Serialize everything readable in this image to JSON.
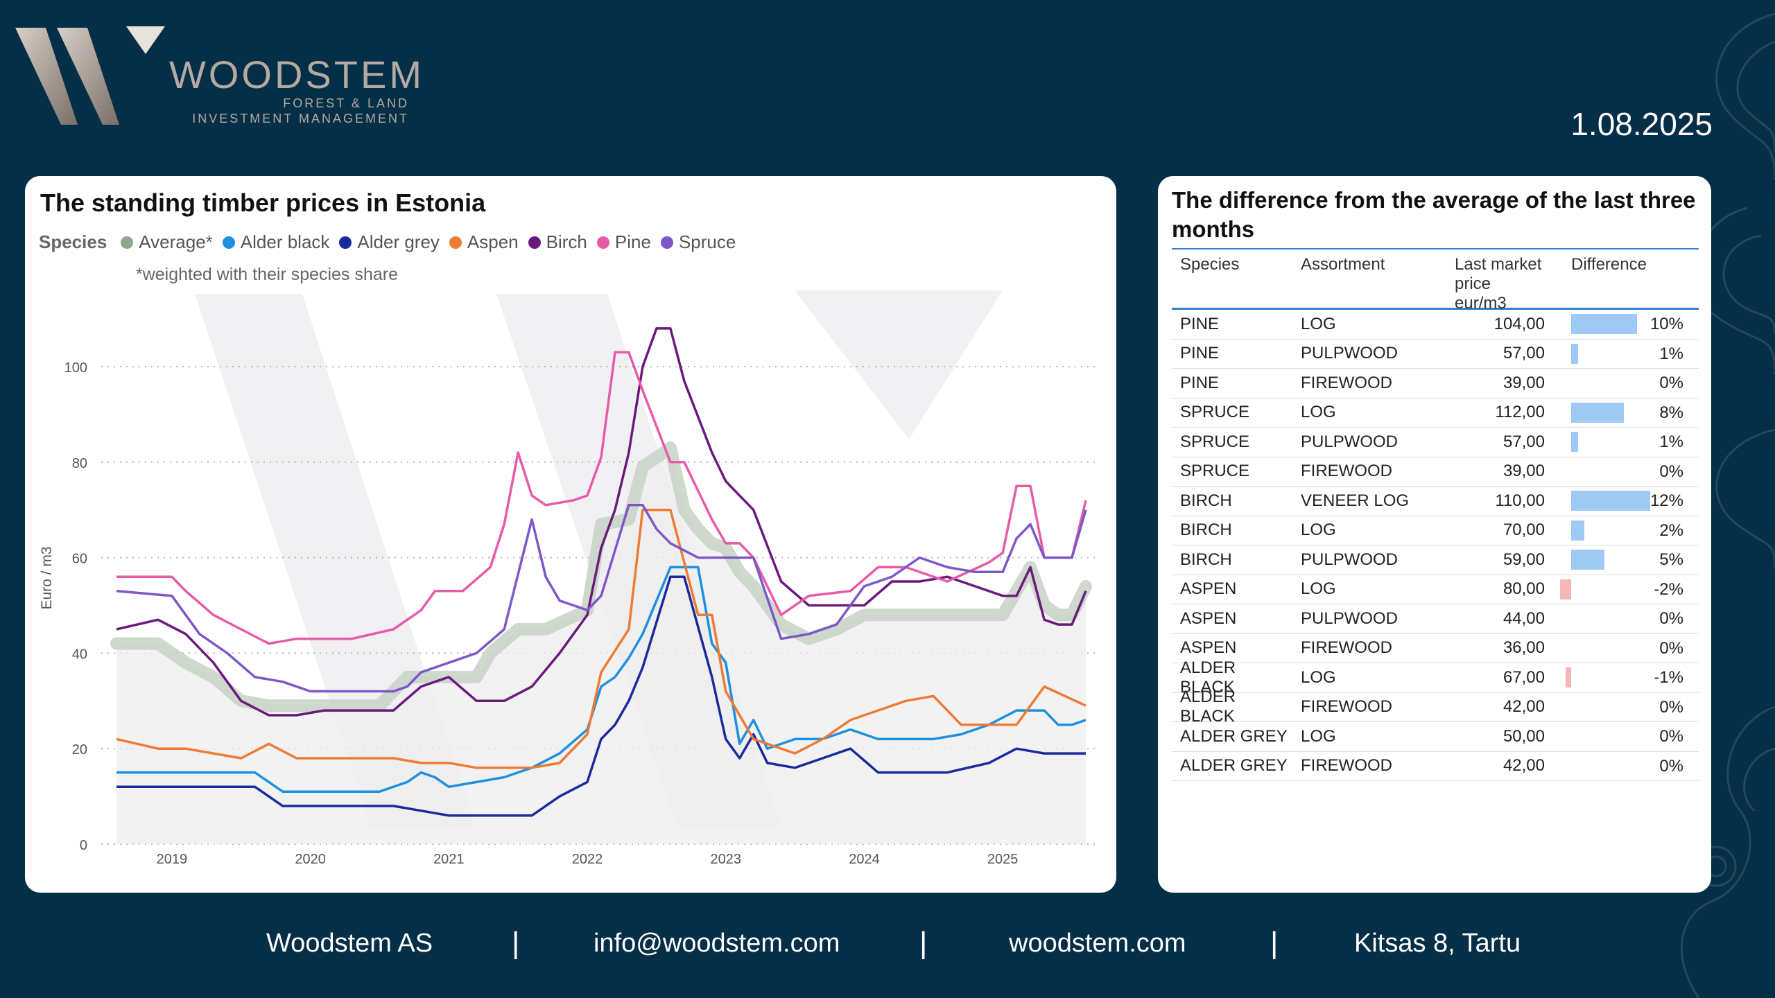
{
  "brand": {
    "name": "WOODSTEM",
    "sub1": "FOREST & LAND",
    "sub2": "INVESTMENT MANAGEMENT"
  },
  "date": "1.08.2025",
  "chart": {
    "title": "The standing timber prices in Estonia",
    "legend_title": "Species",
    "note": "*weighted with their species share",
    "ylabel": "Euro / m3"
  },
  "chart_data": {
    "type": "line",
    "title": "The standing timber prices in Estonia",
    "ylabel": "Euro / m3",
    "ylim": [
      0,
      110
    ],
    "yticks": [
      0,
      20,
      40,
      60,
      80,
      100
    ],
    "xticks": [
      "2019",
      "2020",
      "2021",
      "2022",
      "2023",
      "2024",
      "2025"
    ],
    "grid": "horizontal dotted",
    "legend_position": "top-left",
    "series": [
      {
        "name": "Average*",
        "color": "#8fa78f",
        "x": [
          2018.6,
          2018.9,
          2019.1,
          2019.3,
          2019.5,
          2019.7,
          2019.9,
          2020.1,
          2020.3,
          2020.5,
          2020.7,
          2020.8,
          2021.0,
          2021.2,
          2021.3,
          2021.5,
          2021.7,
          2022.0,
          2022.1,
          2022.3,
          2022.4,
          2022.6,
          2022.7,
          2022.8,
          2022.9,
          2023.0,
          2023.1,
          2023.2,
          2023.4,
          2023.6,
          2023.8,
          2024.0,
          2024.3,
          2024.6,
          2024.9,
          2025.0,
          2025.2,
          2025.3,
          2025.4,
          2025.5,
          2025.6
        ],
        "y": [
          42,
          42,
          38,
          35,
          30,
          29,
          29,
          29,
          29,
          29,
          35,
          35,
          35,
          35,
          40,
          45,
          45,
          49,
          67,
          68,
          79,
          83,
          70,
          66,
          63,
          62,
          57,
          54,
          46,
          43,
          45,
          48,
          48,
          48,
          48,
          48,
          58,
          50,
          48,
          48,
          54
        ]
      },
      {
        "name": "Alder black",
        "color": "#1e90e0",
        "x": [
          2018.6,
          2019.0,
          2019.4,
          2019.6,
          2019.8,
          2020.0,
          2020.3,
          2020.5,
          2020.7,
          2020.8,
          2020.9,
          2021.0,
          2021.2,
          2021.4,
          2021.6,
          2021.8,
          2022.0,
          2022.1,
          2022.2,
          2022.3,
          2022.4,
          2022.6,
          2022.8,
          2022.9,
          2023.0,
          2023.1,
          2023.2,
          2023.3,
          2023.5,
          2023.7,
          2023.9,
          2024.1,
          2024.3,
          2024.5,
          2024.7,
          2024.9,
          2025.1,
          2025.3,
          2025.4,
          2025.5,
          2025.6
        ],
        "y": [
          15,
          15,
          15,
          15,
          11,
          11,
          11,
          11,
          13,
          15,
          14,
          12,
          13,
          14,
          16,
          19,
          24,
          33,
          35,
          39,
          44,
          58,
          58,
          42,
          38,
          21,
          26,
          20,
          22,
          22,
          24,
          22,
          22,
          22,
          23,
          25,
          28,
          28,
          25,
          25,
          26
        ]
      },
      {
        "name": "Alder grey",
        "color": "#1a2a9c",
        "x": [
          2018.6,
          2019.0,
          2019.4,
          2019.6,
          2019.8,
          2020.0,
          2020.3,
          2020.6,
          2020.8,
          2021.0,
          2021.2,
          2021.4,
          2021.6,
          2021.8,
          2022.0,
          2022.1,
          2022.2,
          2022.3,
          2022.4,
          2022.6,
          2022.7,
          2022.9,
          2023.0,
          2023.1,
          2023.2,
          2023.3,
          2023.5,
          2023.7,
          2023.9,
          2024.1,
          2024.3,
          2024.6,
          2024.9,
          2025.1,
          2025.3,
          2025.6
        ],
        "y": [
          12,
          12,
          12,
          12,
          8,
          8,
          8,
          8,
          7,
          6,
          6,
          6,
          6,
          10,
          13,
          22,
          25,
          30,
          37,
          56,
          56,
          35,
          22,
          18,
          23,
          17,
          16,
          18,
          20,
          15,
          15,
          15,
          17,
          20,
          19,
          19
        ]
      },
      {
        "name": "Aspen",
        "color": "#ee7b33",
        "x": [
          2018.6,
          2018.9,
          2019.1,
          2019.3,
          2019.5,
          2019.7,
          2019.9,
          2020.1,
          2020.3,
          2020.6,
          2020.8,
          2021.0,
          2021.2,
          2021.4,
          2021.6,
          2021.8,
          2022.0,
          2022.1,
          2022.3,
          2022.4,
          2022.6,
          2022.8,
          2022.9,
          2023.0,
          2023.2,
          2023.3,
          2023.5,
          2023.7,
          2023.9,
          2024.1,
          2024.3,
          2024.5,
          2024.7,
          2024.9,
          2025.1,
          2025.3,
          2025.6
        ],
        "y": [
          22,
          20,
          20,
          19,
          18,
          21,
          18,
          18,
          18,
          18,
          17,
          17,
          16,
          16,
          16,
          17,
          23,
          36,
          45,
          70,
          70,
          48,
          48,
          32,
          22,
          21,
          19,
          22,
          26,
          28,
          30,
          31,
          25,
          25,
          25,
          33,
          29
        ]
      },
      {
        "name": "Birch",
        "color": "#6a1a7c",
        "x": [
          2018.6,
          2018.9,
          2019.1,
          2019.3,
          2019.5,
          2019.7,
          2019.9,
          2020.1,
          2020.3,
          2020.6,
          2020.8,
          2021.0,
          2021.2,
          2021.4,
          2021.6,
          2021.8,
          2022.0,
          2022.1,
          2022.2,
          2022.3,
          2022.4,
          2022.5,
          2022.6,
          2022.7,
          2022.9,
          2023.0,
          2023.2,
          2023.4,
          2023.6,
          2023.8,
          2024.0,
          2024.2,
          2024.4,
          2024.6,
          2024.8,
          2025.0,
          2025.1,
          2025.2,
          2025.3,
          2025.4,
          2025.5,
          2025.6
        ],
        "y": [
          45,
          47,
          44,
          38,
          30,
          27,
          27,
          28,
          28,
          28,
          33,
          35,
          30,
          30,
          33,
          40,
          48,
          62,
          70,
          82,
          100,
          108,
          108,
          97,
          82,
          76,
          70,
          55,
          50,
          50,
          50,
          55,
          55,
          56,
          54,
          52,
          52,
          58,
          47,
          46,
          46,
          53
        ]
      },
      {
        "name": "Pine",
        "color": "#e85aa8",
        "x": [
          2018.6,
          2019.0,
          2019.1,
          2019.3,
          2019.5,
          2019.7,
          2019.9,
          2020.1,
          2020.3,
          2020.6,
          2020.8,
          2020.9,
          2021.1,
          2021.3,
          2021.4,
          2021.5,
          2021.6,
          2021.7,
          2021.9,
          2022.0,
          2022.1,
          2022.2,
          2022.3,
          2022.4,
          2022.6,
          2022.7,
          2022.9,
          2023.0,
          2023.1,
          2023.2,
          2023.4,
          2023.6,
          2023.9,
          2024.1,
          2024.3,
          2024.6,
          2024.9,
          2025.0,
          2025.1,
          2025.2,
          2025.3,
          2025.4,
          2025.5,
          2025.6
        ],
        "y": [
          56,
          56,
          53,
          48,
          45,
          42,
          43,
          43,
          43,
          45,
          49,
          53,
          53,
          58,
          67,
          82,
          73,
          71,
          72,
          73,
          81,
          103,
          103,
          95,
          80,
          80,
          68,
          63,
          63,
          60,
          48,
          52,
          53,
          58,
          58,
          55,
          59,
          61,
          75,
          75,
          60,
          60,
          60,
          72
        ]
      },
      {
        "name": "Spruce",
        "color": "#7d57c9",
        "x": [
          2018.6,
          2019.0,
          2019.2,
          2019.4,
          2019.6,
          2019.8,
          2020.0,
          2020.3,
          2020.6,
          2020.7,
          2020.8,
          2021.0,
          2021.2,
          2021.4,
          2021.6,
          2021.7,
          2021.8,
          2022.0,
          2022.1,
          2022.3,
          2022.4,
          2022.5,
          2022.6,
          2022.8,
          2023.0,
          2023.2,
          2023.4,
          2023.6,
          2023.8,
          2024.0,
          2024.2,
          2024.4,
          2024.6,
          2024.8,
          2025.0,
          2025.1,
          2025.2,
          2025.3,
          2025.5,
          2025.6
        ],
        "y": [
          53,
          52,
          44,
          40,
          35,
          34,
          32,
          32,
          32,
          33,
          36,
          38,
          40,
          45,
          68,
          56,
          51,
          49,
          52,
          71,
          71,
          66,
          63,
          60,
          60,
          60,
          43,
          44,
          46,
          54,
          56,
          60,
          58,
          57,
          57,
          64,
          67,
          60,
          60,
          70
        ]
      }
    ]
  },
  "table": {
    "title": "The difference from the average of the last three months",
    "headers": {
      "species": "Species",
      "assortment": "Assortment",
      "price1": "Last market",
      "price2": "price eur/m3",
      "diff": "Difference"
    },
    "rows": [
      {
        "species": "PINE",
        "assortment": "LOG",
        "price": "104,00",
        "diff": "10%",
        "value": 10
      },
      {
        "species": "PINE",
        "assortment": "PULPWOOD",
        "price": "57,00",
        "diff": "1%",
        "value": 1
      },
      {
        "species": "PINE",
        "assortment": "FIREWOOD",
        "price": "39,00",
        "diff": "0%",
        "value": 0
      },
      {
        "species": "SPRUCE",
        "assortment": "LOG",
        "price": "112,00",
        "diff": "8%",
        "value": 8
      },
      {
        "species": "SPRUCE",
        "assortment": "PULPWOOD",
        "price": "57,00",
        "diff": "1%",
        "value": 1
      },
      {
        "species": "SPRUCE",
        "assortment": "FIREWOOD",
        "price": "39,00",
        "diff": "0%",
        "value": 0
      },
      {
        "species": "BIRCH",
        "assortment": "VENEER LOG",
        "price": "110,00",
        "diff": "12%",
        "value": 12
      },
      {
        "species": "BIRCH",
        "assortment": "LOG",
        "price": "70,00",
        "diff": "2%",
        "value": 2
      },
      {
        "species": "BIRCH",
        "assortment": "PULPWOOD",
        "price": "59,00",
        "diff": "5%",
        "value": 5
      },
      {
        "species": "ASPEN",
        "assortment": "LOG",
        "price": "80,00",
        "diff": "-2%",
        "value": -2
      },
      {
        "species": "ASPEN",
        "assortment": "PULPWOOD",
        "price": "44,00",
        "diff": "0%",
        "value": 0
      },
      {
        "species": "ASPEN",
        "assortment": "FIREWOOD",
        "price": "36,00",
        "diff": "0%",
        "value": 0
      },
      {
        "species": "ALDER BLACK",
        "assortment": "LOG",
        "price": "67,00",
        "diff": "-1%",
        "value": -1
      },
      {
        "species": "ALDER BLACK",
        "assortment": "FIREWOOD",
        "price": "42,00",
        "diff": "0%",
        "value": 0
      },
      {
        "species": "ALDER GREY",
        "assortment": "LOG",
        "price": "50,00",
        "diff": "0%",
        "value": 0
      },
      {
        "species": "ALDER GREY",
        "assortment": "FIREWOOD",
        "price": "42,00",
        "diff": "0%",
        "value": 0
      }
    ]
  },
  "footer": {
    "company": "Woodstem AS",
    "email": "info@woodstem.com",
    "site": "woodstem.com",
    "address": "Kitsas 8, Tartu",
    "sep": "|"
  }
}
